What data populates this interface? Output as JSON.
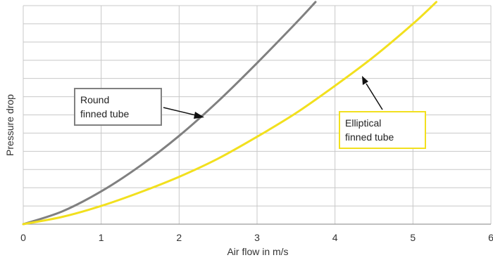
{
  "chart_data": {
    "type": "line",
    "xlabel": "Air flow in m/s",
    "ylabel": "Pressure drop",
    "xlim": [
      0,
      6
    ],
    "x_ticks": [
      "0",
      "1",
      "2",
      "3",
      "4",
      "5",
      "6"
    ],
    "ylim": [
      0,
      12
    ],
    "y_ticks_labeled": false,
    "grid": true,
    "series": [
      {
        "name": "Round finned tube",
        "color": "#808080",
        "x": [
          0,
          0.5,
          1,
          1.5,
          2,
          2.5,
          3,
          3.5,
          3.75
        ],
        "y": [
          0,
          0.7,
          1.8,
          3.2,
          4.85,
          6.75,
          8.85,
          11.05,
          12.2
        ]
      },
      {
        "name": "Elliptical finned tube",
        "color": "#f2e01e",
        "x": [
          0,
          0.5,
          1,
          1.5,
          2,
          2.5,
          3,
          3.5,
          4,
          4.5,
          5,
          5.3
        ],
        "y": [
          0,
          0.4,
          1.0,
          1.75,
          2.6,
          3.6,
          4.8,
          6.1,
          7.6,
          9.2,
          11.0,
          12.2
        ]
      }
    ],
    "annotations": [
      {
        "lines": [
          "Round",
          "finned tube"
        ],
        "series": 0,
        "border_color": "#808080"
      },
      {
        "lines": [
          "Elliptical",
          "finned tube"
        ],
        "series": 1,
        "border_color": "#f2e01e"
      }
    ]
  }
}
